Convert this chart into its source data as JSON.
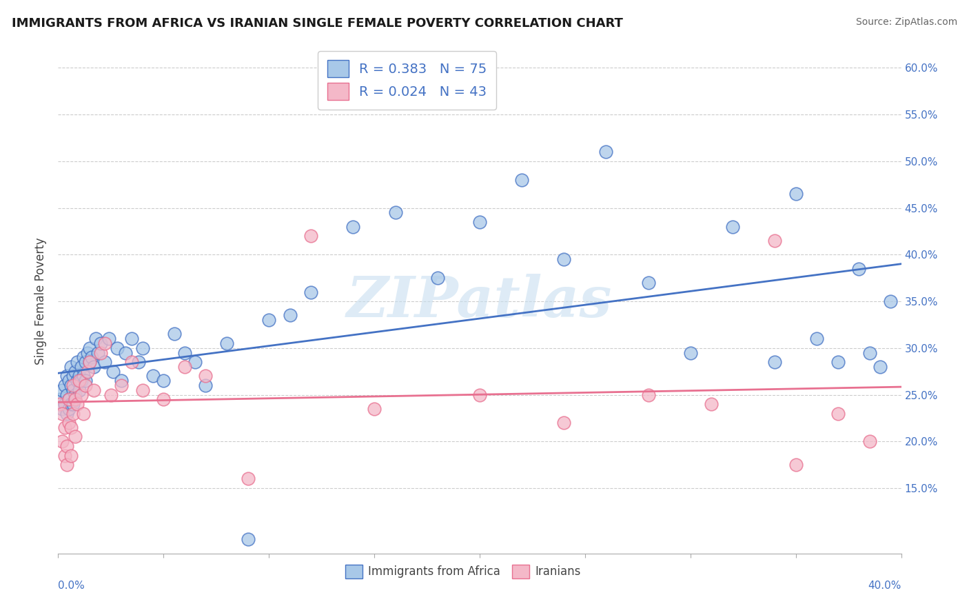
{
  "title": "IMMIGRANTS FROM AFRICA VS IRANIAN SINGLE FEMALE POVERTY CORRELATION CHART",
  "source": "Source: ZipAtlas.com",
  "ylabel": "Single Female Poverty",
  "legend_label_1": "Immigrants from Africa",
  "legend_label_2": "Iranians",
  "R1": 0.383,
  "N1": 75,
  "R2": 0.024,
  "N2": 43,
  "color_blue": "#a8c8e8",
  "color_pink": "#f4b8c8",
  "color_blue_dark": "#4472c4",
  "color_pink_dark": "#e87090",
  "watermark": "ZIPatlas",
  "blue_x": [
    0.001,
    0.002,
    0.002,
    0.003,
    0.003,
    0.004,
    0.004,
    0.004,
    0.005,
    0.005,
    0.005,
    0.006,
    0.006,
    0.006,
    0.007,
    0.007,
    0.007,
    0.008,
    0.008,
    0.009,
    0.009,
    0.01,
    0.01,
    0.011,
    0.011,
    0.012,
    0.012,
    0.013,
    0.013,
    0.014,
    0.015,
    0.015,
    0.016,
    0.017,
    0.018,
    0.019,
    0.02,
    0.022,
    0.024,
    0.026,
    0.028,
    0.03,
    0.032,
    0.035,
    0.038,
    0.04,
    0.045,
    0.05,
    0.055,
    0.06,
    0.065,
    0.07,
    0.08,
    0.09,
    0.1,
    0.11,
    0.12,
    0.14,
    0.16,
    0.18,
    0.2,
    0.22,
    0.24,
    0.26,
    0.28,
    0.3,
    0.32,
    0.34,
    0.35,
    0.36,
    0.37,
    0.38,
    0.385,
    0.39,
    0.395
  ],
  "blue_y": [
    0.245,
    0.255,
    0.235,
    0.26,
    0.24,
    0.25,
    0.27,
    0.23,
    0.265,
    0.245,
    0.235,
    0.26,
    0.28,
    0.24,
    0.255,
    0.27,
    0.24,
    0.275,
    0.25,
    0.265,
    0.285,
    0.27,
    0.255,
    0.28,
    0.265,
    0.29,
    0.27,
    0.285,
    0.265,
    0.295,
    0.285,
    0.3,
    0.29,
    0.28,
    0.31,
    0.295,
    0.305,
    0.285,
    0.31,
    0.275,
    0.3,
    0.265,
    0.295,
    0.31,
    0.285,
    0.3,
    0.27,
    0.265,
    0.315,
    0.295,
    0.285,
    0.26,
    0.305,
    0.095,
    0.33,
    0.335,
    0.36,
    0.43,
    0.445,
    0.375,
    0.435,
    0.48,
    0.395,
    0.51,
    0.37,
    0.295,
    0.43,
    0.285,
    0.465,
    0.31,
    0.285,
    0.385,
    0.295,
    0.28,
    0.35
  ],
  "pink_x": [
    0.001,
    0.002,
    0.002,
    0.003,
    0.003,
    0.004,
    0.004,
    0.005,
    0.005,
    0.006,
    0.006,
    0.007,
    0.007,
    0.008,
    0.008,
    0.009,
    0.01,
    0.011,
    0.012,
    0.013,
    0.014,
    0.015,
    0.017,
    0.02,
    0.022,
    0.025,
    0.03,
    0.035,
    0.04,
    0.05,
    0.06,
    0.07,
    0.09,
    0.12,
    0.15,
    0.2,
    0.24,
    0.28,
    0.31,
    0.34,
    0.35,
    0.37,
    0.385
  ],
  "pink_y": [
    0.24,
    0.23,
    0.2,
    0.185,
    0.215,
    0.195,
    0.175,
    0.22,
    0.245,
    0.215,
    0.185,
    0.26,
    0.23,
    0.245,
    0.205,
    0.24,
    0.265,
    0.25,
    0.23,
    0.26,
    0.275,
    0.285,
    0.255,
    0.295,
    0.305,
    0.25,
    0.26,
    0.285,
    0.255,
    0.245,
    0.28,
    0.27,
    0.16,
    0.42,
    0.235,
    0.25,
    0.22,
    0.25,
    0.24,
    0.415,
    0.175,
    0.23,
    0.2
  ],
  "xlim": [
    0.0,
    0.4
  ],
  "ylim": [
    0.08,
    0.62
  ],
  "ytick_vals": [
    0.15,
    0.2,
    0.25,
    0.3,
    0.35,
    0.4,
    0.45,
    0.5,
    0.55,
    0.6
  ],
  "ytick_labels": [
    "15.0%",
    "20.0%",
    "25.0%",
    "30.0%",
    "35.0%",
    "40.0%",
    "45.0%",
    "50.0%",
    "55.0%",
    "60.0%"
  ],
  "title_fontsize": 13,
  "label_fontsize": 11,
  "axis_color": "#4472c4"
}
